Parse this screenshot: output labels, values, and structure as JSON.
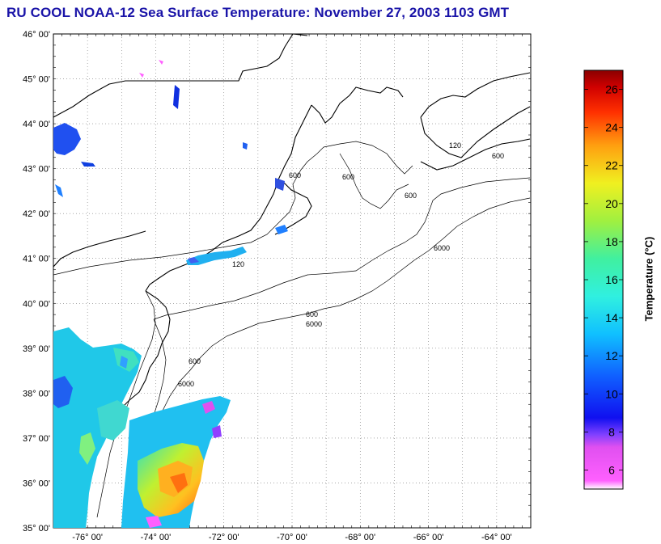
{
  "title": "RU COOL  NOAA-12  Sea Surface Temperature:  November 27, 2003 1103 GMT",
  "map": {
    "lat_range": [
      35,
      46
    ],
    "lon_range": [
      -77,
      -63
    ],
    "lat_ticks": [
      "35° 00'",
      "36° 00'",
      "37° 00'",
      "38° 00'",
      "39° 00'",
      "40° 00'",
      "41° 00'",
      "42° 00'",
      "43° 00'",
      "44° 00'",
      "45° 00'",
      "46° 00'"
    ],
    "lon_ticks": [
      "-76° 00'",
      "-74° 00'",
      "-72° 00'",
      "-70° 00'",
      "-68° 00'",
      "-66° 00'",
      "-64° 00'"
    ],
    "grid": "dotted",
    "contour_labels": [
      "120",
      "600",
      "6000"
    ]
  },
  "colorbar": {
    "label": "Temperature (°C)",
    "range": [
      5,
      27
    ],
    "ticks": [
      "6",
      "8",
      "10",
      "12",
      "14",
      "16",
      "18",
      "20",
      "22",
      "24",
      "26"
    ]
  }
}
